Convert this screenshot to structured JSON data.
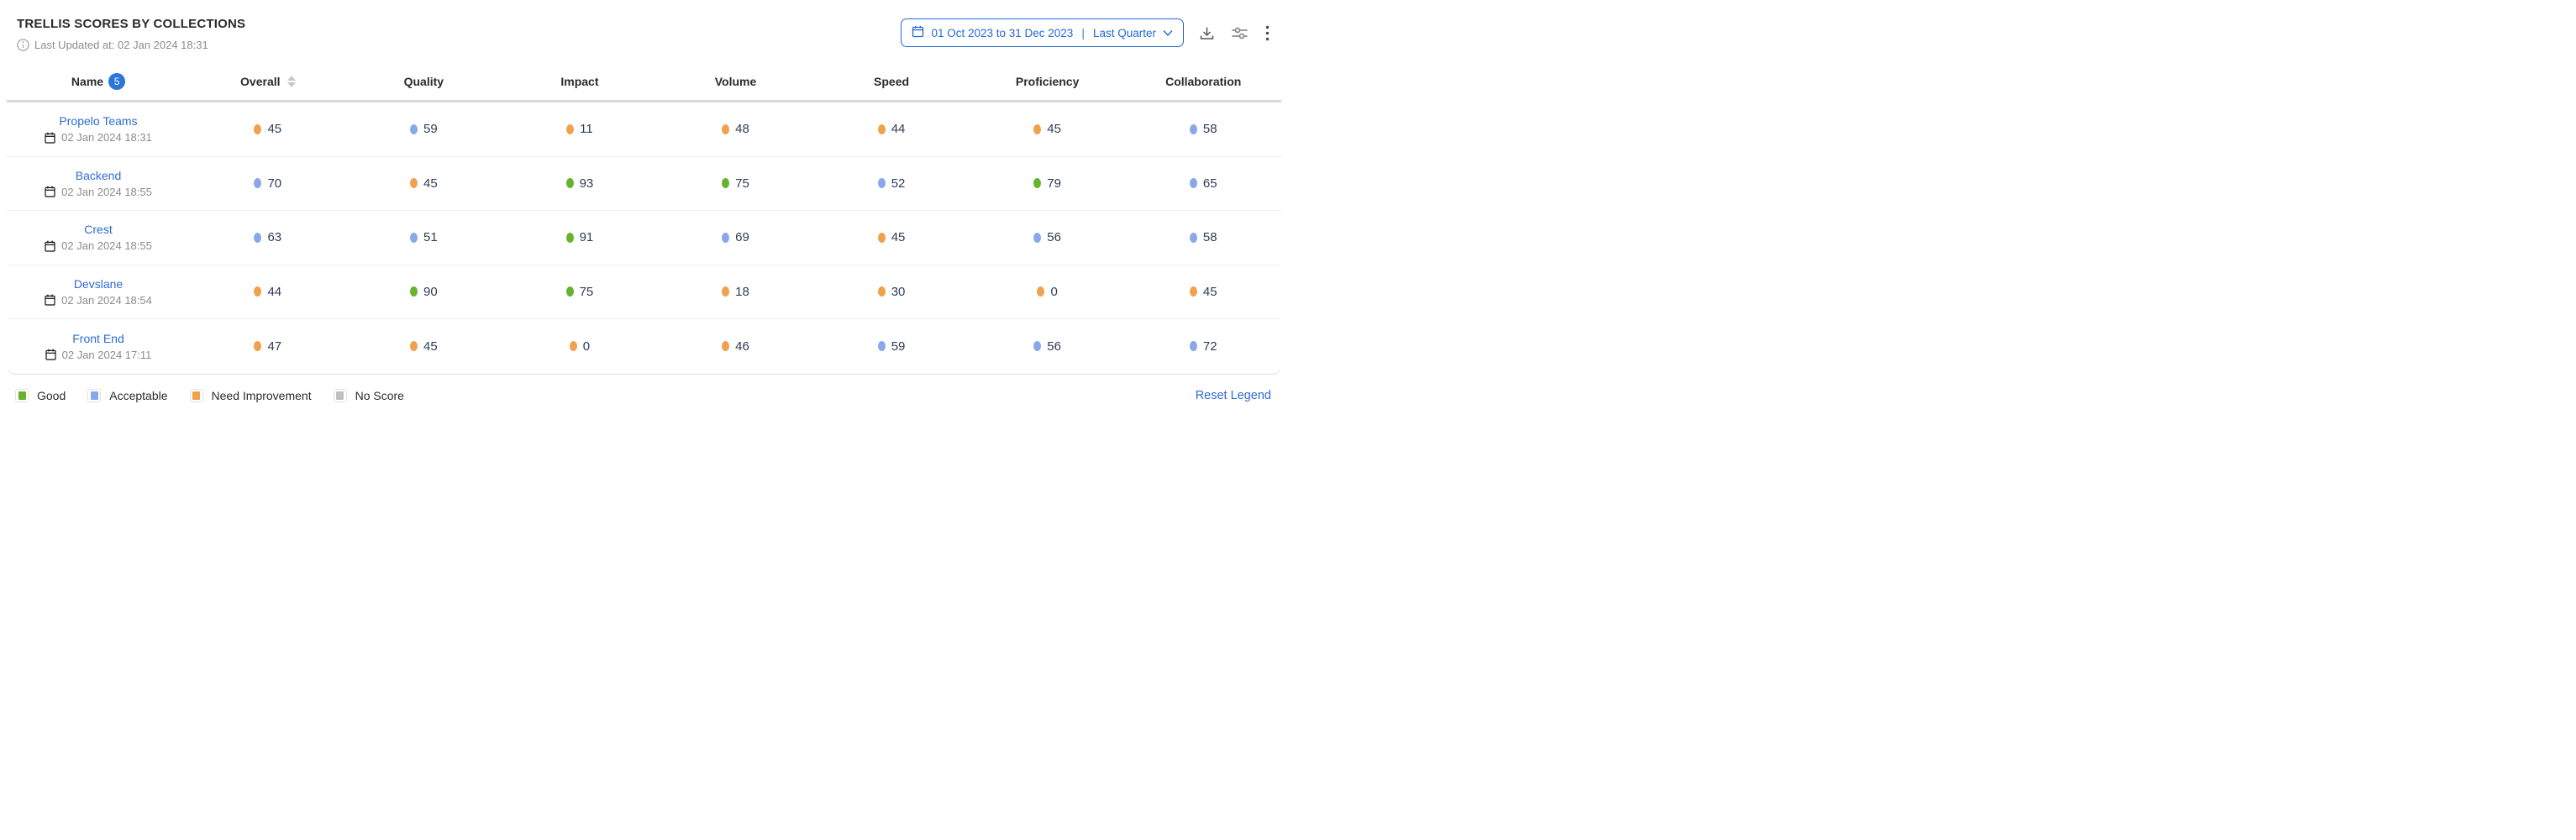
{
  "header": {
    "title": "TRELLIS SCORES BY COLLECTIONS",
    "last_updated": "Last Updated at: 02 Jan 2024 18:31"
  },
  "controls": {
    "date_range": "01 Oct 2023 to 31 Dec 2023",
    "date_preset": "Last Quarter",
    "icons": [
      "calendar-icon",
      "chevron-down-icon",
      "download-icon",
      "sliders-icon",
      "kebab-menu-icon"
    ]
  },
  "table": {
    "columns": [
      "Name",
      "Overall",
      "Quality",
      "Impact",
      "Volume",
      "Speed",
      "Proficiency",
      "Collaboration"
    ],
    "name_badge_count": "5",
    "sorted_column": "Overall",
    "rows": [
      {
        "name": "Propelo Teams",
        "updated": "02 Jan 2024 18:31",
        "scores": [
          {
            "value": 45,
            "level": "need_improvement"
          },
          {
            "value": 59,
            "level": "acceptable"
          },
          {
            "value": 11,
            "level": "need_improvement"
          },
          {
            "value": 48,
            "level": "need_improvement"
          },
          {
            "value": 44,
            "level": "need_improvement"
          },
          {
            "value": 45,
            "level": "need_improvement"
          },
          {
            "value": 58,
            "level": "acceptable"
          }
        ]
      },
      {
        "name": "Backend",
        "updated": "02 Jan 2024 18:55",
        "scores": [
          {
            "value": 70,
            "level": "acceptable"
          },
          {
            "value": 45,
            "level": "need_improvement"
          },
          {
            "value": 93,
            "level": "good"
          },
          {
            "value": 75,
            "level": "good"
          },
          {
            "value": 52,
            "level": "acceptable"
          },
          {
            "value": 79,
            "level": "good"
          },
          {
            "value": 65,
            "level": "acceptable"
          }
        ]
      },
      {
        "name": "Crest",
        "updated": "02 Jan 2024 18:55",
        "scores": [
          {
            "value": 63,
            "level": "acceptable"
          },
          {
            "value": 51,
            "level": "acceptable"
          },
          {
            "value": 91,
            "level": "good"
          },
          {
            "value": 69,
            "level": "acceptable"
          },
          {
            "value": 45,
            "level": "need_improvement"
          },
          {
            "value": 56,
            "level": "acceptable"
          },
          {
            "value": 58,
            "level": "acceptable"
          }
        ]
      },
      {
        "name": "Devslane",
        "updated": "02 Jan 2024 18:54",
        "scores": [
          {
            "value": 44,
            "level": "need_improvement"
          },
          {
            "value": 90,
            "level": "good"
          },
          {
            "value": 75,
            "level": "good"
          },
          {
            "value": 18,
            "level": "need_improvement"
          },
          {
            "value": 30,
            "level": "need_improvement"
          },
          {
            "value": 0,
            "level": "need_improvement"
          },
          {
            "value": 45,
            "level": "need_improvement"
          }
        ]
      },
      {
        "name": "Front End",
        "updated": "02 Jan 2024 17:11",
        "scores": [
          {
            "value": 47,
            "level": "need_improvement"
          },
          {
            "value": 45,
            "level": "need_improvement"
          },
          {
            "value": 0,
            "level": "need_improvement"
          },
          {
            "value": 46,
            "level": "need_improvement"
          },
          {
            "value": 59,
            "level": "acceptable"
          },
          {
            "value": 56,
            "level": "acceptable"
          },
          {
            "value": 72,
            "level": "acceptable"
          }
        ]
      }
    ]
  },
  "legend": {
    "items": [
      {
        "label": "Good",
        "level": "good"
      },
      {
        "label": "Acceptable",
        "level": "acceptable"
      },
      {
        "label": "Need Improvement",
        "level": "need_improvement"
      },
      {
        "label": "No Score",
        "level": "no_score"
      }
    ],
    "reset_label": "Reset Legend"
  },
  "colors": {
    "good": "#65b32e",
    "acceptable": "#8aa7eb",
    "need_improvement": "#f0a14e",
    "no_score": "#bfbfbf",
    "accent": "#2468d5",
    "link": "#2e6bd6"
  }
}
